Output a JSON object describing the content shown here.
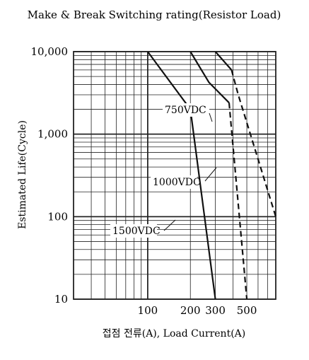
{
  "chart_data": {
    "type": "line",
    "title": "Make & Break Switching rating(Resistor Load)",
    "xlabel": "접점 전류(A), Load Current(A)",
    "ylabel": "Estimated Life(Cycle)",
    "x_scale": "log",
    "y_scale": "log",
    "xlim": [
      30,
      800
    ],
    "ylim": [
      10,
      10000
    ],
    "x_ticks": [
      {
        "value": 100,
        "label": "100"
      },
      {
        "value": 200,
        "label": "200"
      },
      {
        "value": 300,
        "label": "300"
      },
      {
        "value": 500,
        "label": "500"
      }
    ],
    "y_ticks": [
      {
        "value": 10000,
        "label": "10,000"
      },
      {
        "value": 1000,
        "label": "1,000"
      },
      {
        "value": 100,
        "label": "100"
      },
      {
        "value": 10,
        "label": "10"
      }
    ],
    "grid": true,
    "series": [
      {
        "name": "1500VDC",
        "style": "solid",
        "color": "#111111",
        "points": [
          [
            100,
            10000
          ],
          [
            200,
            2000
          ],
          [
            300,
            10
          ]
        ]
      },
      {
        "name": "1000VDC",
        "style": "solid-then-dashed",
        "color": "#111111",
        "points": [
          [
            200,
            10000
          ],
          [
            270,
            4250
          ],
          [
            375,
            2400
          ]
        ],
        "dashed_points": [
          [
            375,
            2400
          ],
          [
            500,
            10
          ]
        ]
      },
      {
        "name": "750VDC",
        "style": "solid-then-dashed",
        "color": "#111111",
        "points": [
          [
            300,
            10000
          ],
          [
            390,
            6000
          ]
        ],
        "dashed_points": [
          [
            390,
            6000
          ],
          [
            435,
            3000
          ],
          [
            800,
            100
          ]
        ]
      }
    ]
  }
}
